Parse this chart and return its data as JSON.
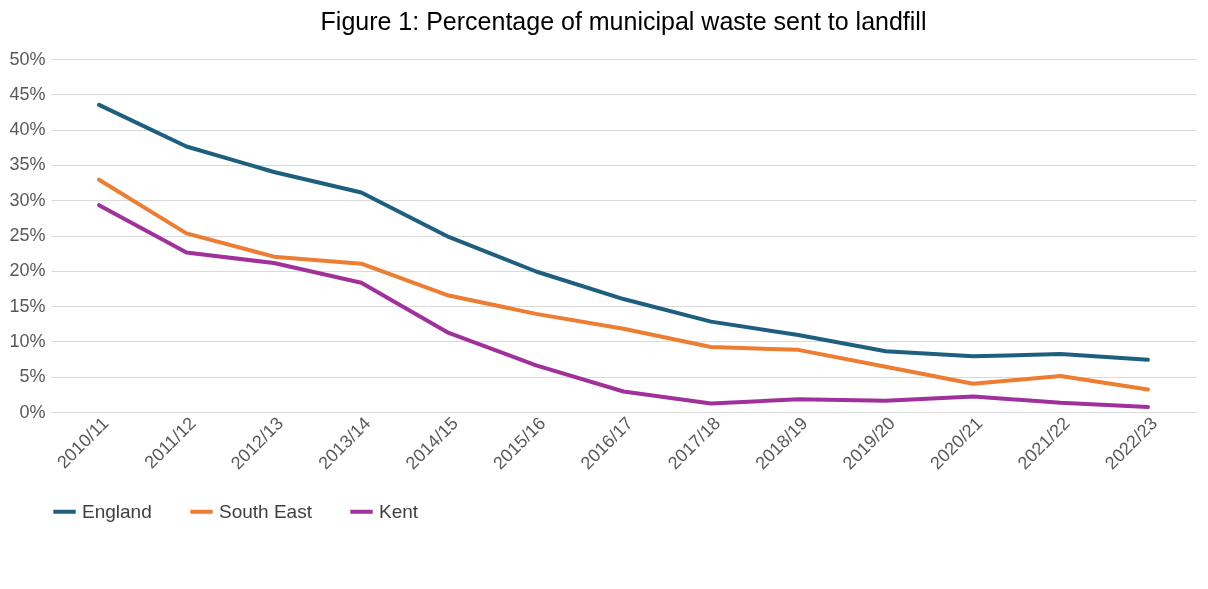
{
  "chart_data": {
    "type": "line",
    "title": "Figure 1: Percentage of municipal waste sent to landfill",
    "categories": [
      "2010/11",
      "2011/12",
      "2012/13",
      "2013/14",
      "2014/15",
      "2015/16",
      "2016/17",
      "2017/18",
      "2018/19",
      "2019/20",
      "2020/21",
      "2021/22",
      "2022/23"
    ],
    "series": [
      {
        "name": "England",
        "color": "#1d5f7f",
        "values": [
          43.5,
          37.6,
          34,
          31.1,
          24.8,
          19.9,
          16,
          12.8,
          10.9,
          8.6,
          7.9,
          8.2,
          7.4
        ]
      },
      {
        "name": "South East",
        "color": "#ed7d31",
        "values": [
          32.9,
          25.3,
          22,
          21,
          16.5,
          13.9,
          11.8,
          9.2,
          8.8,
          6.4,
          4,
          5.1,
          3.2
        ]
      },
      {
        "name": "Kent",
        "color": "#a0309a",
        "values": [
          29.3,
          22.6,
          21.1,
          18.3,
          11.2,
          6.6,
          2.9,
          1.2,
          1.8,
          1.6,
          2.2,
          1.3,
          0.7
        ]
      }
    ],
    "ylim": [
      0,
      50
    ],
    "yticks": [
      {
        "value": 0,
        "label": "0%"
      },
      {
        "value": 5,
        "label": "5%"
      },
      {
        "value": 10,
        "label": "10%"
      },
      {
        "value": 15,
        "label": "15%"
      },
      {
        "value": 20,
        "label": "20%"
      },
      {
        "value": 25,
        "label": "25%"
      },
      {
        "value": 30,
        "label": "30%"
      },
      {
        "value": 35,
        "label": "35%"
      },
      {
        "value": 40,
        "label": "40%"
      },
      {
        "value": 45,
        "label": "45%"
      },
      {
        "value": 50,
        "label": "50%"
      }
    ],
    "grid": "y",
    "legend": "bottom",
    "marker": "none",
    "line_style": "solid"
  }
}
